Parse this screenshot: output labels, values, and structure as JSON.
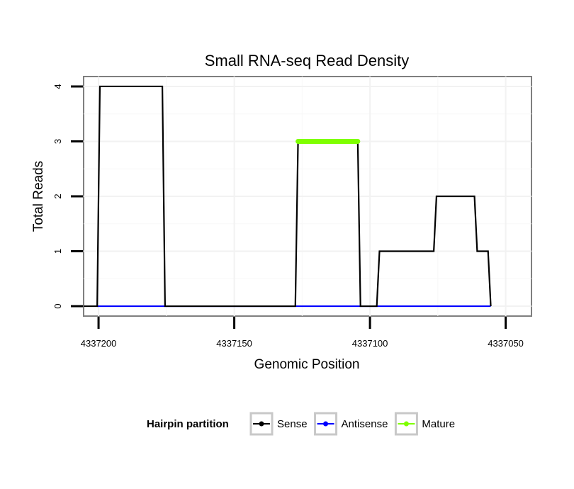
{
  "chart_data": {
    "type": "line",
    "title": "Small RNA-seq Read Density",
    "xlabel": "Genomic Position",
    "ylabel": "Total Reads",
    "x_reversed": true,
    "xlim": [
      4337205.5,
      4337040.5
    ],
    "ylim": [
      -0.18,
      4.18
    ],
    "x_ticks": [
      4337200,
      4337150,
      4337100,
      4337050
    ],
    "x_tick_labels": [
      "4337200",
      "4337150",
      "4337100",
      "4337050"
    ],
    "y_ticks": [
      0,
      1,
      2,
      3,
      4
    ],
    "y_tick_labels": [
      "0",
      "1",
      "2",
      "3",
      "4"
    ],
    "grid": true,
    "legend": {
      "title": "Hairpin partition",
      "position": "bottom",
      "entries": [
        {
          "name": "Sense",
          "color": "#000000"
        },
        {
          "name": "Antisense",
          "color": "#0000ff"
        },
        {
          "name": "Mature",
          "color": "#7fff00"
        }
      ]
    },
    "series": [
      {
        "name": "Sense",
        "color": "#000000",
        "x": [
          4337205.5,
          4337200.5,
          4337199.5,
          4337176.5,
          4337175.5,
          4337127.5,
          4337126.5,
          4337104.5,
          4337103.5,
          4337099.5,
          4337098.5,
          4337097.5,
          4337096.5,
          4337076.5,
          4337075.5,
          4337061.5,
          4337060.5,
          4337059.5,
          4337058.5,
          4337056.5,
          4337055.5
        ],
        "y": [
          0,
          0,
          4,
          4,
          0,
          0,
          3,
          3,
          0,
          0,
          0,
          0,
          1,
          1,
          2,
          2,
          1,
          1,
          1,
          1,
          0
        ]
      },
      {
        "name": "Antisense",
        "color": "#0000ff",
        "x": [
          4337200.5,
          4337055.5
        ],
        "y": [
          0,
          0
        ]
      },
      {
        "name": "Mature",
        "color": "#7fff00",
        "x": [
          4337126.5,
          4337104.5
        ],
        "y": [
          3,
          3
        ]
      }
    ]
  }
}
